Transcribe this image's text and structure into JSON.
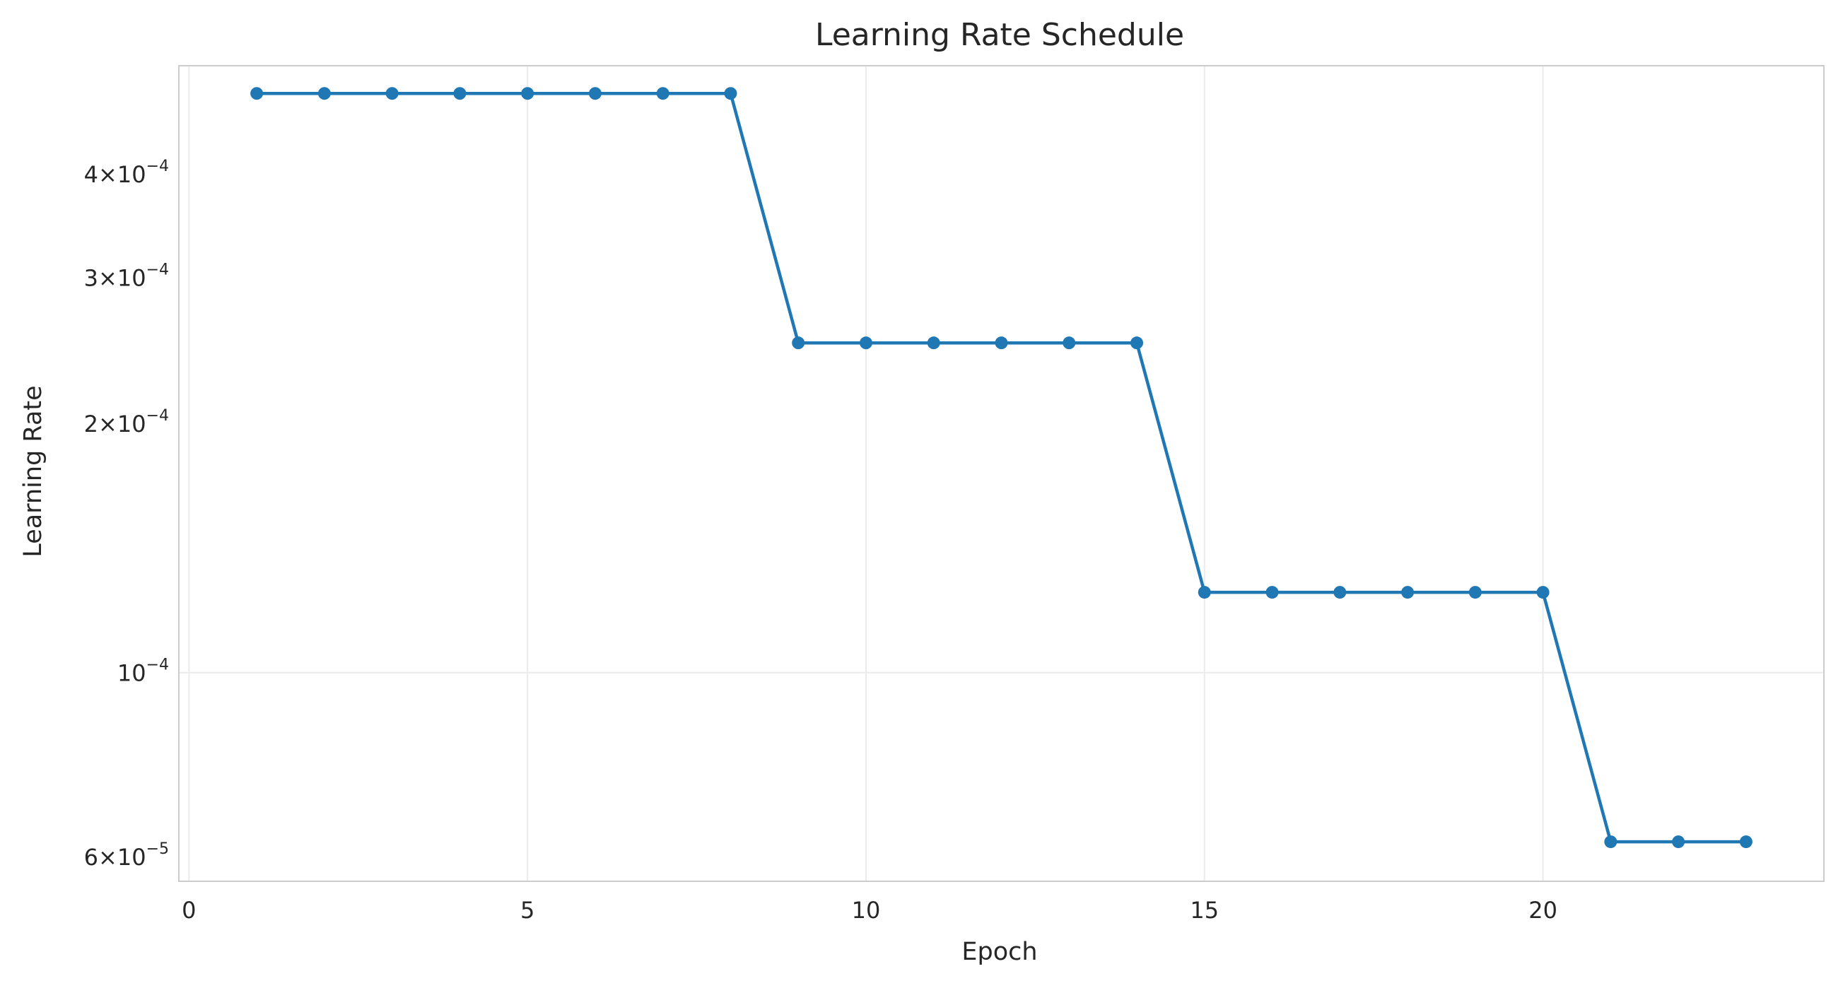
{
  "chart_data": {
    "type": "line",
    "title": "Learning Rate Schedule",
    "xlabel": "Epoch",
    "ylabel": "Learning Rate",
    "x_scale": "linear",
    "y_scale": "log",
    "xlim": [
      -0.15,
      24.15
    ],
    "ylim": [
      5.6e-05,
      0.00054
    ],
    "x_ticks": [
      {
        "value": 0,
        "label": "0"
      },
      {
        "value": 5,
        "label": "5"
      },
      {
        "value": 10,
        "label": "10"
      },
      {
        "value": 15,
        "label": "15"
      },
      {
        "value": 20,
        "label": "20"
      }
    ],
    "y_ticks": [
      {
        "value": 6e-05,
        "base": "6×10",
        "exp": "−5"
      },
      {
        "value": 0.0001,
        "base": "10",
        "exp": "−4"
      },
      {
        "value": 0.0002,
        "base": "2×10",
        "exp": "−4"
      },
      {
        "value": 0.0003,
        "base": "3×10",
        "exp": "−4"
      },
      {
        "value": 0.0004,
        "base": "4×10",
        "exp": "−4"
      }
    ],
    "grid": true,
    "series": [
      {
        "color": "#1f77b4",
        "marker": "circle",
        "x": [
          1,
          2,
          3,
          4,
          5,
          6,
          7,
          8,
          9,
          10,
          11,
          12,
          13,
          14,
          15,
          16,
          17,
          18,
          19,
          20,
          21,
          22,
          23
        ],
        "y": [
          0.0005,
          0.0005,
          0.0005,
          0.0005,
          0.0005,
          0.0005,
          0.0005,
          0.0005,
          0.00025,
          0.00025,
          0.00025,
          0.00025,
          0.00025,
          0.00025,
          0.000125,
          0.000125,
          0.000125,
          0.000125,
          0.000125,
          0.000125,
          6.25e-05,
          6.25e-05,
          6.25e-05
        ]
      }
    ]
  }
}
